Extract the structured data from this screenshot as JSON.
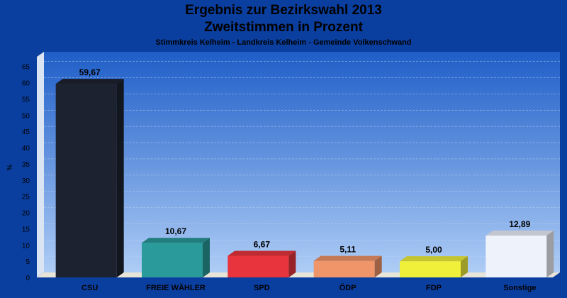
{
  "chart_data": {
    "type": "bar",
    "title": "Ergebnis zur Bezirkswahl 2013",
    "subtitle": "Zweitstimmen in Prozent",
    "caption": "Stimmkreis Kelheim - Landkreis Kelheim - Gemeinde Volkenschwand",
    "ylabel": "%",
    "xlabel": "",
    "ylim": [
      0,
      68
    ],
    "yticks": [
      0,
      5,
      10,
      15,
      20,
      25,
      30,
      35,
      40,
      45,
      50,
      55,
      60,
      65
    ],
    "grid": true,
    "categories": [
      "CSU",
      "FREIE WÄHLER",
      "SPD",
      "ÖDP",
      "FDP",
      "Sonstige"
    ],
    "values": [
      59.67,
      10.67,
      6.67,
      5.11,
      5.0,
      12.89
    ],
    "value_labels": [
      "59,67",
      "10,67",
      "6,67",
      "5,11",
      "5,00",
      "12,89"
    ],
    "colors": [
      "#1c2230",
      "#2a9a9a",
      "#e8343c",
      "#f0956a",
      "#f0f03a",
      "#eef2fb"
    ]
  }
}
